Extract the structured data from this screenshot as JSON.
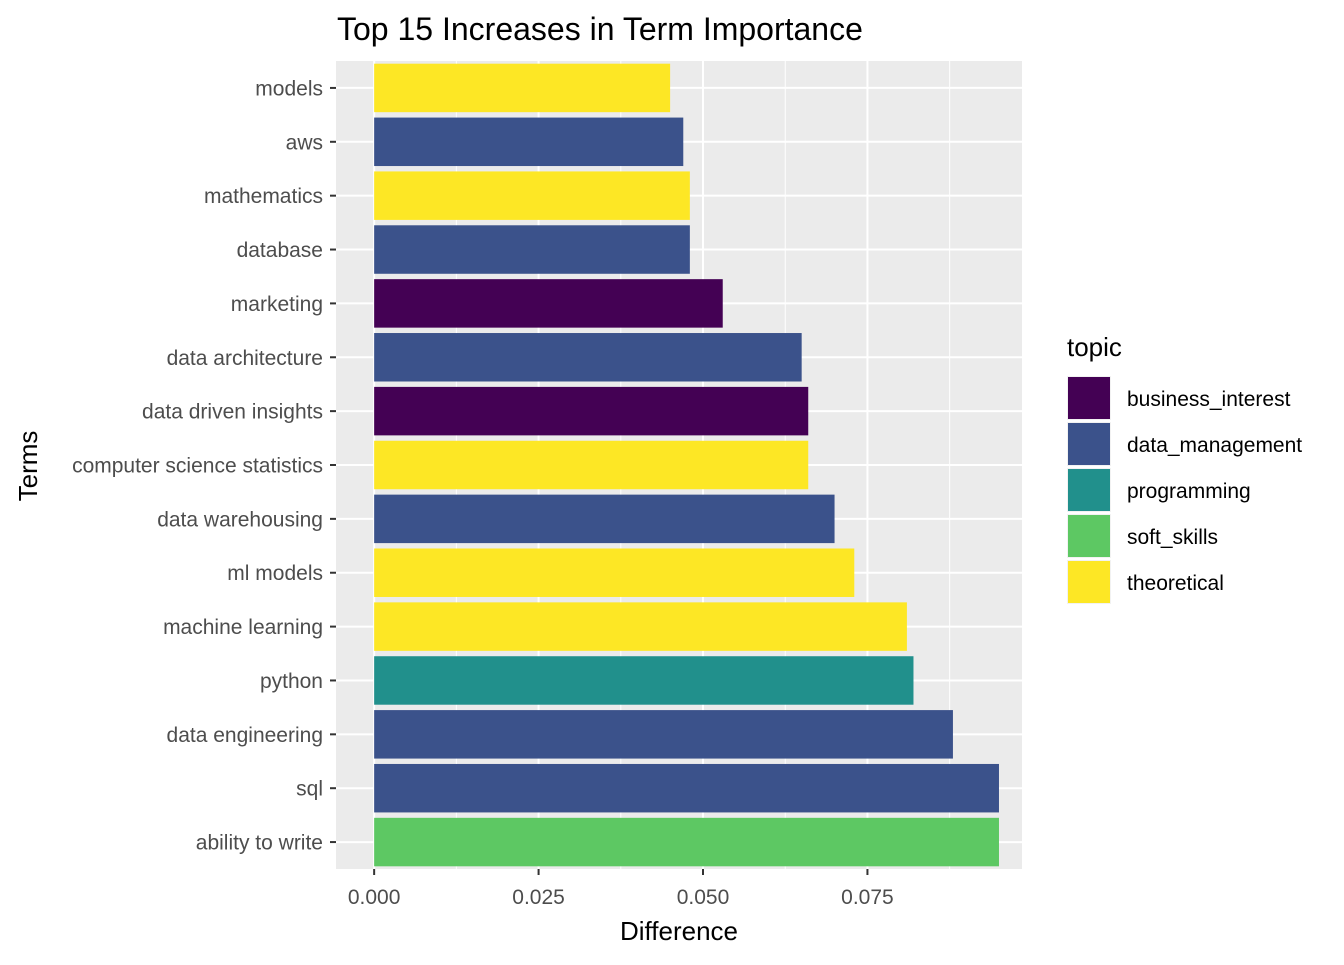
{
  "chart_data": {
    "type": "bar",
    "orientation": "horizontal",
    "title": "Top 15 Increases in Term Importance",
    "xlabel": "Difference",
    "ylabel": "Terms",
    "xlim": [
      -0.0058,
      0.0985
    ],
    "x_ticks": [
      0.0,
      0.025,
      0.05,
      0.075
    ],
    "x_tick_labels": [
      "0.000",
      "0.025",
      "0.050",
      "0.075"
    ],
    "grid": true,
    "legend": {
      "title": "topic",
      "placement": "right",
      "entries": [
        {
          "name": "business_interest",
          "color": "#440154"
        },
        {
          "name": "data_management",
          "color": "#3B528B"
        },
        {
          "name": "programming",
          "color": "#21908C"
        },
        {
          "name": "soft_skills",
          "color": "#5DC863"
        },
        {
          "name": "theoretical",
          "color": "#FDE725"
        }
      ]
    },
    "bars": [
      {
        "term": "models",
        "value": 0.045,
        "topic": "theoretical"
      },
      {
        "term": "aws",
        "value": 0.047,
        "topic": "data_management"
      },
      {
        "term": "mathematics",
        "value": 0.048,
        "topic": "theoretical"
      },
      {
        "term": "database",
        "value": 0.048,
        "topic": "data_management"
      },
      {
        "term": "marketing",
        "value": 0.053,
        "topic": "business_interest"
      },
      {
        "term": "data architecture",
        "value": 0.065,
        "topic": "data_management"
      },
      {
        "term": "data driven insights",
        "value": 0.066,
        "topic": "business_interest"
      },
      {
        "term": "computer science statistics",
        "value": 0.066,
        "topic": "theoretical"
      },
      {
        "term": "data warehousing",
        "value": 0.07,
        "topic": "data_management"
      },
      {
        "term": "ml models",
        "value": 0.073,
        "topic": "theoretical"
      },
      {
        "term": "machine learning",
        "value": 0.081,
        "topic": "theoretical"
      },
      {
        "term": "python",
        "value": 0.082,
        "topic": "programming"
      },
      {
        "term": "data engineering",
        "value": 0.088,
        "topic": "data_management"
      },
      {
        "term": "sql",
        "value": 0.095,
        "topic": "data_management"
      },
      {
        "term": "ability to write",
        "value": 0.095,
        "topic": "soft_skills"
      }
    ]
  }
}
